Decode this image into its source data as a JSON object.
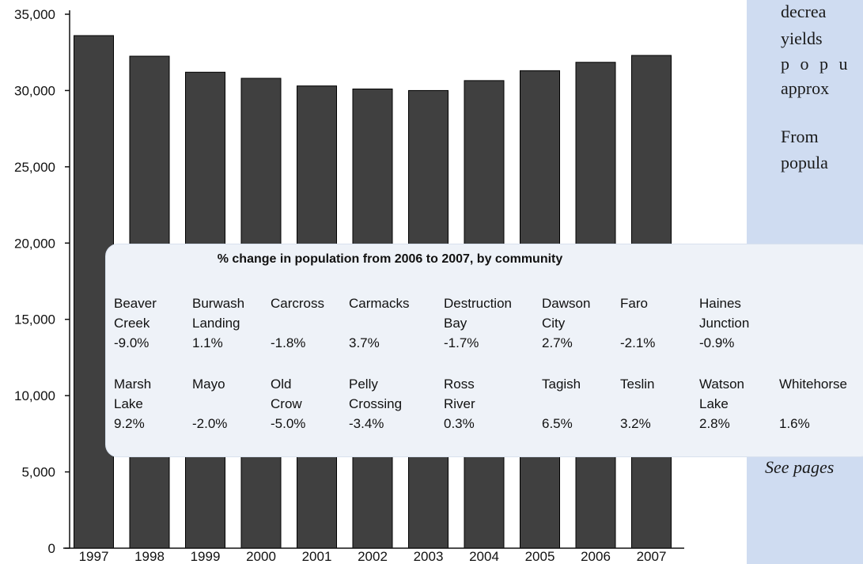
{
  "chart_data": {
    "type": "bar",
    "categories": [
      "1997",
      "1998",
      "1999",
      "2000",
      "2001",
      "2002",
      "2003",
      "2004",
      "2005",
      "2006",
      "2007"
    ],
    "values": [
      33600,
      32250,
      31200,
      30800,
      30300,
      30100,
      30000,
      30650,
      31300,
      31850,
      32300
    ],
    "yticks": [
      "0",
      "5,000",
      "10,000",
      "15,000",
      "20,000",
      "25,000",
      "30,000",
      "35,000"
    ],
    "ylim": [
      0,
      35000
    ],
    "bar_color": "#404040",
    "grid": false
  },
  "inset": {
    "title": "% change in population from 2006 to 2007, by community",
    "rows": [
      [
        {
          "name": [
            "Beaver",
            "Creek"
          ],
          "pct": "-9.0%"
        },
        {
          "name": [
            "Burwash",
            "Landing"
          ],
          "pct": "1.1%"
        },
        {
          "name": [
            "Carcross"
          ],
          "pct": "-1.8%"
        },
        {
          "name": [
            "Carmacks"
          ],
          "pct": "3.7%"
        },
        {
          "name": [
            "Destruction",
            "Bay"
          ],
          "pct": "-1.7%"
        },
        {
          "name": [
            "Dawson",
            "City"
          ],
          "pct": "2.7%"
        },
        {
          "name": [
            "Faro"
          ],
          "pct": "-2.1%"
        },
        {
          "name": [
            "Haines",
            "Junction"
          ],
          "pct": "-0.9%"
        }
      ],
      [
        {
          "name": [
            "Marsh",
            "Lake"
          ],
          "pct": "9.2%"
        },
        {
          "name": [
            "Mayo"
          ],
          "pct": "-2.0%"
        },
        {
          "name": [
            "Old",
            "Crow"
          ],
          "pct": "-5.0%"
        },
        {
          "name": [
            "Pelly",
            "Crossing"
          ],
          "pct": "-3.4%"
        },
        {
          "name": [
            "Ross",
            "River"
          ],
          "pct": "0.3%"
        },
        {
          "name": [
            "Tagish"
          ],
          "pct": "6.5%"
        },
        {
          "name": [
            "Teslin"
          ],
          "pct": "3.2%"
        },
        {
          "name": [
            "Watson",
            "Lake"
          ],
          "pct": "2.8%"
        },
        {
          "name": [
            "Whitehorse"
          ],
          "pct": "1.6%"
        }
      ]
    ]
  },
  "sidebar": {
    "lines": [
      "decrea",
      "yields",
      "p o p u",
      "approx",
      "From",
      "popula"
    ],
    "footer": "See pages"
  }
}
